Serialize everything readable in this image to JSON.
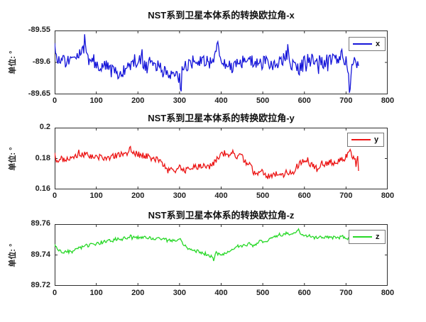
{
  "figure": {
    "background": "#ffffff",
    "axis_color": "#2e2e2e",
    "text_color": "#1a1a1a"
  },
  "chart_data": [
    {
      "type": "line",
      "title": "NST系到卫星本体系的转换欧拉角-x",
      "ylabel": "单位: °",
      "legend_label": "x",
      "legend_position": "upper right",
      "color": "#1616d9",
      "grid": false,
      "xlim": [
        0,
        800
      ],
      "ylim": [
        -89.65,
        -89.55
      ],
      "xticks": [
        0,
        100,
        200,
        300,
        400,
        500,
        600,
        700,
        800
      ],
      "xtick_labels": [
        "0",
        "100",
        "200",
        "300",
        "400",
        "500",
        "600",
        "700",
        "800"
      ],
      "yticks": [
        -89.65,
        -89.6,
        -89.55
      ],
      "ytick_labels": [
        "-89.65",
        "-89.6",
        "-89.55"
      ],
      "x_end": 731,
      "noise_amplitude": 0.011,
      "spike_probability": 0.05,
      "spike_scale": 1.9,
      "seed": 9,
      "trend": [
        [
          0,
          -89.563
        ],
        [
          4,
          -89.592
        ],
        [
          15,
          -89.597
        ],
        [
          30,
          -89.598
        ],
        [
          45,
          -89.592
        ],
        [
          60,
          -89.597
        ],
        [
          70,
          -89.58
        ],
        [
          72,
          -89.566
        ],
        [
          75,
          -89.59
        ],
        [
          90,
          -89.6
        ],
        [
          105,
          -89.606
        ],
        [
          120,
          -89.605
        ],
        [
          135,
          -89.612
        ],
        [
          150,
          -89.615
        ],
        [
          160,
          -89.617
        ],
        [
          170,
          -89.61
        ],
        [
          180,
          -89.604
        ],
        [
          190,
          -89.598
        ],
        [
          200,
          -89.597
        ],
        [
          210,
          -89.6
        ],
        [
          220,
          -89.604
        ],
        [
          230,
          -89.602
        ],
        [
          245,
          -89.608
        ],
        [
          260,
          -89.613
        ],
        [
          275,
          -89.617
        ],
        [
          290,
          -89.62
        ],
        [
          300,
          -89.625
        ],
        [
          303,
          -89.648
        ],
        [
          307,
          -89.6
        ],
        [
          315,
          -89.61
        ],
        [
          325,
          -89.603
        ],
        [
          335,
          -89.598
        ],
        [
          345,
          -89.597
        ],
        [
          355,
          -89.6
        ],
        [
          365,
          -89.603
        ],
        [
          375,
          -89.6
        ],
        [
          385,
          -89.597
        ],
        [
          391,
          -89.57
        ],
        [
          394,
          -89.585
        ],
        [
          405,
          -89.6
        ],
        [
          415,
          -89.605
        ],
        [
          425,
          -89.607
        ],
        [
          440,
          -89.603
        ],
        [
          455,
          -89.6
        ],
        [
          470,
          -89.598
        ],
        [
          485,
          -89.6
        ],
        [
          500,
          -89.601
        ],
        [
          515,
          -89.602
        ],
        [
          530,
          -89.604
        ],
        [
          545,
          -89.598
        ],
        [
          558,
          -89.59
        ],
        [
          561,
          -89.568
        ],
        [
          565,
          -89.6
        ],
        [
          575,
          -89.608
        ],
        [
          585,
          -89.612
        ],
        [
          595,
          -89.605
        ],
        [
          605,
          -89.597
        ],
        [
          620,
          -89.596
        ],
        [
          635,
          -89.6
        ],
        [
          650,
          -89.598
        ],
        [
          665,
          -89.599
        ],
        [
          680,
          -89.593
        ],
        [
          690,
          -89.59
        ],
        [
          700,
          -89.596
        ],
        [
          706,
          -89.615
        ],
        [
          709,
          -89.649
        ],
        [
          713,
          -89.6
        ],
        [
          718,
          -89.598
        ],
        [
          724,
          -89.61
        ],
        [
          731,
          -89.606
        ]
      ]
    },
    {
      "type": "line",
      "title": "NST系到卫星本体系的转换欧拉角-y",
      "ylabel": "单位: °",
      "legend_label": "y",
      "legend_position": "upper right",
      "color": "#ec1515",
      "grid": false,
      "xlim": [
        0,
        800
      ],
      "ylim": [
        0.16,
        0.2
      ],
      "xticks": [
        0,
        100,
        200,
        300,
        400,
        500,
        600,
        700,
        800
      ],
      "xtick_labels": [
        "0",
        "100",
        "200",
        "300",
        "400",
        "500",
        "600",
        "700",
        "800"
      ],
      "yticks": [
        0.16,
        0.18,
        0.2
      ],
      "ytick_labels": [
        "0.16",
        "0.18",
        "0.2"
      ],
      "x_end": 731,
      "noise_amplitude": 0.002,
      "spike_probability": 0.03,
      "spike_scale": 1.8,
      "seed": 5,
      "trend": [
        [
          0,
          0.183
        ],
        [
          8,
          0.176
        ],
        [
          15,
          0.18
        ],
        [
          25,
          0.179
        ],
        [
          35,
          0.18
        ],
        [
          50,
          0.181
        ],
        [
          65,
          0.183
        ],
        [
          80,
          0.182
        ],
        [
          95,
          0.181
        ],
        [
          110,
          0.181
        ],
        [
          125,
          0.18
        ],
        [
          140,
          0.182
        ],
        [
          155,
          0.182
        ],
        [
          168,
          0.183
        ],
        [
          178,
          0.184
        ],
        [
          181,
          0.189
        ],
        [
          185,
          0.184
        ],
        [
          195,
          0.183
        ],
        [
          210,
          0.182
        ],
        [
          225,
          0.181
        ],
        [
          240,
          0.18
        ],
        [
          255,
          0.179
        ],
        [
          263,
          0.175
        ],
        [
          270,
          0.172
        ],
        [
          280,
          0.173
        ],
        [
          290,
          0.172
        ],
        [
          300,
          0.176
        ],
        [
          308,
          0.172
        ],
        [
          318,
          0.173
        ],
        [
          330,
          0.174
        ],
        [
          342,
          0.175
        ],
        [
          355,
          0.175
        ],
        [
          368,
          0.174
        ],
        [
          380,
          0.176
        ],
        [
          390,
          0.18
        ],
        [
          398,
          0.182
        ],
        [
          408,
          0.184
        ],
        [
          418,
          0.183
        ],
        [
          428,
          0.184
        ],
        [
          438,
          0.181
        ],
        [
          448,
          0.183
        ],
        [
          455,
          0.179
        ],
        [
          462,
          0.176
        ],
        [
          470,
          0.177
        ],
        [
          478,
          0.171
        ],
        [
          488,
          0.17
        ],
        [
          498,
          0.171
        ],
        [
          508,
          0.168
        ],
        [
          518,
          0.169
        ],
        [
          528,
          0.17
        ],
        [
          538,
          0.171
        ],
        [
          548,
          0.169
        ],
        [
          558,
          0.172
        ],
        [
          568,
          0.17
        ],
        [
          578,
          0.173
        ],
        [
          588,
          0.177
        ],
        [
          598,
          0.178
        ],
        [
          608,
          0.18
        ],
        [
          612,
          0.176
        ],
        [
          620,
          0.176
        ],
        [
          630,
          0.174
        ],
        [
          640,
          0.177
        ],
        [
          650,
          0.176
        ],
        [
          660,
          0.178
        ],
        [
          670,
          0.177
        ],
        [
          680,
          0.178
        ],
        [
          690,
          0.179
        ],
        [
          700,
          0.181
        ],
        [
          707,
          0.184
        ],
        [
          710,
          0.187
        ],
        [
          714,
          0.18
        ],
        [
          719,
          0.183
        ],
        [
          724,
          0.175
        ],
        [
          728,
          0.18
        ],
        [
          731,
          0.168
        ]
      ]
    },
    {
      "type": "line",
      "title": "NST系到卫星本体系的转换欧拉角-z",
      "ylabel": "单位: °",
      "legend_label": "z",
      "legend_position": "upper right",
      "color": "#27d827",
      "grid": false,
      "xlim": [
        0,
        800
      ],
      "ylim": [
        89.72,
        89.76
      ],
      "xticks": [
        0,
        100,
        200,
        300,
        400,
        500,
        600,
        700,
        800
      ],
      "xtick_labels": [
        "0",
        "100",
        "200",
        "300",
        "400",
        "500",
        "600",
        "700",
        "800"
      ],
      "yticks": [
        89.72,
        89.74,
        89.76
      ],
      "ytick_labels": [
        "89.72",
        "89.74",
        "89.76"
      ],
      "x_end": 731,
      "noise_amplitude": 0.0011,
      "spike_probability": 0.03,
      "spike_scale": 1.6,
      "seed": 3,
      "trend": [
        [
          0,
          89.7465
        ],
        [
          6,
          89.744
        ],
        [
          14,
          89.7425
        ],
        [
          22,
          89.741
        ],
        [
          30,
          89.7425
        ],
        [
          40,
          89.742
        ],
        [
          50,
          89.7435
        ],
        [
          60,
          89.7445
        ],
        [
          75,
          89.746
        ],
        [
          90,
          89.7465
        ],
        [
          105,
          89.7475
        ],
        [
          120,
          89.749
        ],
        [
          135,
          89.749
        ],
        [
          150,
          89.7505
        ],
        [
          165,
          89.7505
        ],
        [
          180,
          89.752
        ],
        [
          195,
          89.751
        ],
        [
          210,
          89.7515
        ],
        [
          225,
          89.751
        ],
        [
          240,
          89.7505
        ],
        [
          255,
          89.7505
        ],
        [
          270,
          89.7495
        ],
        [
          285,
          89.7495
        ],
        [
          300,
          89.7505
        ],
        [
          308,
          89.747
        ],
        [
          316,
          89.7455
        ],
        [
          325,
          89.7435
        ],
        [
          335,
          89.7425
        ],
        [
          345,
          89.7425
        ],
        [
          355,
          89.7415
        ],
        [
          365,
          89.7405
        ],
        [
          375,
          89.7395
        ],
        [
          382,
          89.737
        ],
        [
          388,
          89.7415
        ],
        [
          395,
          89.74
        ],
        [
          403,
          89.7405
        ],
        [
          412,
          89.7415
        ],
        [
          420,
          89.742
        ],
        [
          428,
          89.7445
        ],
        [
          438,
          89.7455
        ],
        [
          448,
          89.746
        ],
        [
          458,
          89.746
        ],
        [
          468,
          89.7475
        ],
        [
          478,
          89.746
        ],
        [
          488,
          89.748
        ],
        [
          498,
          89.749
        ],
        [
          508,
          89.749
        ],
        [
          518,
          89.75
        ],
        [
          528,
          89.7515
        ],
        [
          538,
          89.753
        ],
        [
          548,
          89.753
        ],
        [
          558,
          89.754
        ],
        [
          568,
          89.753
        ],
        [
          578,
          89.7545
        ],
        [
          584,
          89.757
        ],
        [
          590,
          89.7535
        ],
        [
          600,
          89.752
        ],
        [
          612,
          89.7525
        ],
        [
          624,
          89.751
        ],
        [
          636,
          89.752
        ],
        [
          648,
          89.7515
        ],
        [
          660,
          89.752
        ],
        [
          672,
          89.751
        ],
        [
          684,
          89.7515
        ],
        [
          696,
          89.752
        ],
        [
          705,
          89.75
        ],
        [
          712,
          89.7525
        ],
        [
          720,
          89.753
        ],
        [
          726,
          89.7535
        ],
        [
          731,
          89.755
        ]
      ]
    }
  ]
}
